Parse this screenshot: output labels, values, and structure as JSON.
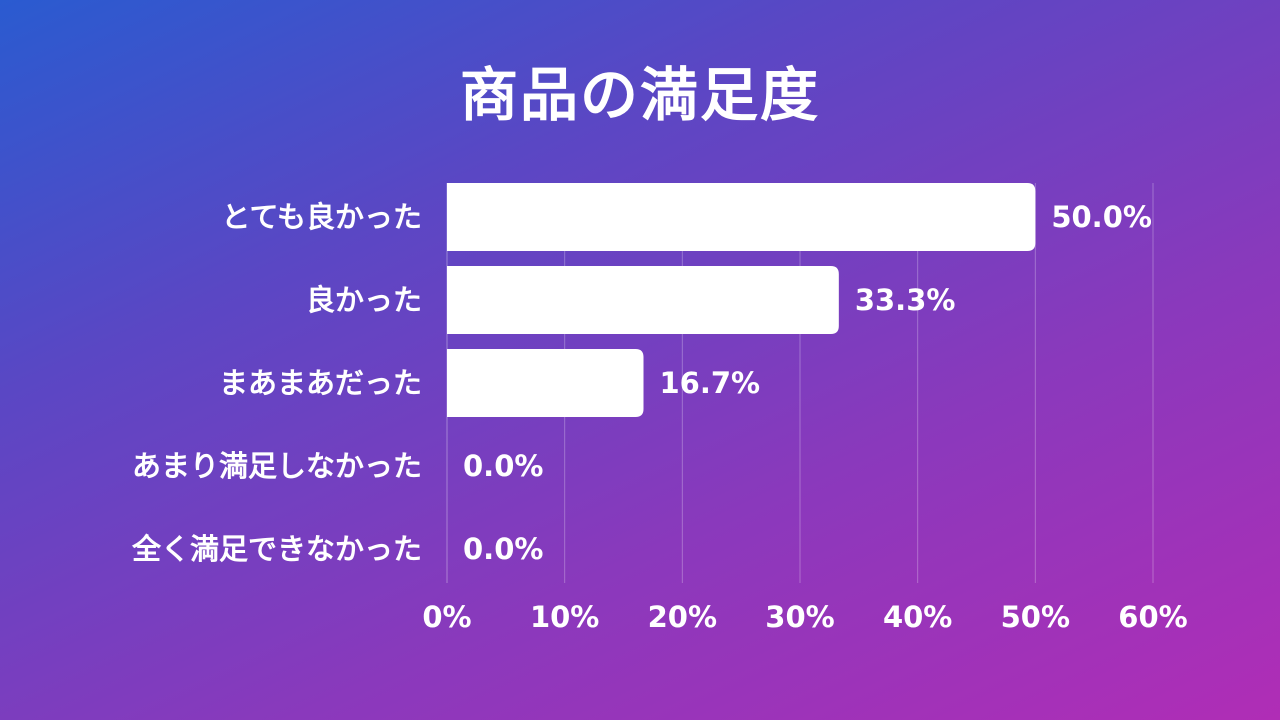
{
  "chart_data": {
    "type": "bar",
    "orientation": "horizontal",
    "title": "商品の満足度",
    "categories": [
      "とても良かった",
      "良かった",
      "まあまあだった",
      "あまり満足しなかった",
      "全く満足できなかった"
    ],
    "values": [
      50.0,
      33.3,
      16.7,
      0.0,
      0.0
    ],
    "value_labels": [
      "50.0%",
      "33.3%",
      "16.7%",
      "0.0%",
      "0.0%"
    ],
    "x_ticks": [
      0,
      10,
      20,
      30,
      40,
      50,
      60
    ],
    "x_tick_labels": [
      "0%",
      "10%",
      "20%",
      "30%",
      "40%",
      "50%",
      "60%"
    ],
    "xlim": [
      0,
      60
    ],
    "xlabel": "",
    "ylabel": "",
    "grid": true,
    "legend": "none",
    "colors": {
      "bar": "#ffffff",
      "text": "#ffffff",
      "background_start": "#2a5bd0",
      "background_end": "#b02db6"
    }
  }
}
